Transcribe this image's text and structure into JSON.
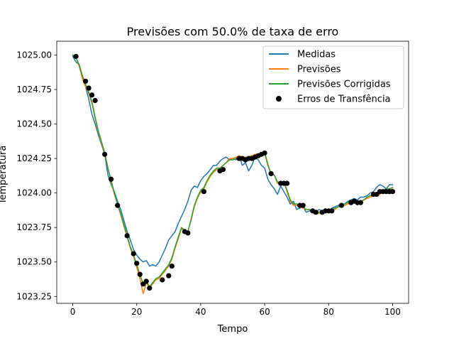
{
  "chart_data": {
    "type": "line",
    "title": "Previsões com 50.0% de taxa de erro",
    "xlabel": "Tempo",
    "ylabel": "Temperatura",
    "xlim": [
      -5,
      105
    ],
    "ylim": [
      1023.2,
      1025.1
    ],
    "x_ticks": [
      0,
      20,
      40,
      60,
      80,
      100
    ],
    "y_ticks": [
      1023.25,
      1023.5,
      1023.75,
      1024.0,
      1024.25,
      1024.5,
      1024.75,
      1025.0
    ],
    "x_tick_labels": [
      "0",
      "20",
      "40",
      "60",
      "80",
      "100"
    ],
    "y_tick_labels": [
      "1023.25",
      "1023.50",
      "1023.75",
      "1024.00",
      "1024.25",
      "1024.50",
      "1024.75",
      "1025.00"
    ],
    "grid": false,
    "legend_position": "top-right",
    "series": [
      {
        "name": "Medidas",
        "color": "#1f77b4",
        "style": "line",
        "x": [
          0,
          1,
          2,
          3,
          4,
          5,
          6,
          7,
          8,
          9,
          10,
          11,
          12,
          13,
          14,
          15,
          16,
          17,
          18,
          19,
          20,
          21,
          22,
          23,
          24,
          25,
          26,
          27,
          28,
          29,
          30,
          31,
          32,
          33,
          34,
          35,
          36,
          37,
          38,
          39,
          40,
          41,
          42,
          43,
          44,
          45,
          46,
          47,
          48,
          49,
          50,
          51,
          52,
          53,
          54,
          55,
          56,
          57,
          58,
          59,
          60,
          61,
          62,
          63,
          64,
          65,
          66,
          67,
          68,
          69,
          70,
          71,
          72,
          73,
          74,
          75,
          76,
          77,
          78,
          79,
          80,
          81,
          82,
          83,
          84,
          85,
          86,
          87,
          88,
          89,
          90,
          91,
          92,
          93,
          94,
          95,
          96,
          97,
          98,
          99,
          100
        ],
        "y": [
          1024.99,
          1024.95,
          1024.93,
          1024.85,
          1024.77,
          1024.68,
          1024.57,
          1024.5,
          1024.42,
          1024.35,
          1024.28,
          1024.13,
          1024.06,
          1024.01,
          1023.94,
          1023.88,
          1023.8,
          1023.72,
          1023.66,
          1023.59,
          1023.55,
          1023.52,
          1023.5,
          1023.51,
          1023.47,
          1023.48,
          1023.47,
          1023.5,
          1023.55,
          1023.6,
          1023.66,
          1023.69,
          1023.72,
          1023.78,
          1023.83,
          1023.88,
          1023.94,
          1024.02,
          1024.05,
          1024.04,
          1024.09,
          1024.12,
          1024.14,
          1024.17,
          1024.2,
          1024.2,
          1024.23,
          1024.25,
          1024.26,
          1024.24,
          1024.25,
          1024.24,
          1024.27,
          1024.2,
          1024.22,
          1024.16,
          1024.2,
          1024.26,
          1024.24,
          1024.2,
          1024.18,
          1024.1,
          1024.06,
          1024.03,
          1023.99,
          1024.05,
          1024.01,
          1023.97,
          1023.92,
          1023.94,
          1023.88,
          1023.89,
          1023.9,
          1023.86,
          1023.87,
          1023.88,
          1023.86,
          1023.88,
          1023.87,
          1023.88,
          1023.87,
          1023.89,
          1023.9,
          1023.91,
          1023.92,
          1023.92,
          1023.94,
          1023.95,
          1023.96,
          1023.95,
          1023.97,
          1023.97,
          1023.98,
          1024.0,
          1024.01,
          1024.04,
          1024.06,
          1024.05,
          1024.03,
          1024.06,
          1024.06
        ]
      },
      {
        "name": "Previsões",
        "color": "#ff7f0e",
        "style": "line",
        "x": [
          0,
          1,
          2,
          3,
          4,
          5,
          6,
          7,
          8,
          9,
          10,
          11,
          12,
          13,
          14,
          15,
          16,
          17,
          18,
          19,
          20,
          21,
          22,
          23,
          24,
          25,
          26,
          27,
          28,
          29,
          30,
          31,
          32,
          33,
          34,
          35,
          36,
          37,
          38,
          39,
          40,
          41,
          42,
          43,
          44,
          45,
          46,
          47,
          48,
          49,
          50,
          51,
          52,
          53,
          54,
          55,
          56,
          57,
          58,
          59,
          60,
          61,
          62,
          63,
          64,
          65,
          66,
          67,
          68,
          69,
          70,
          71,
          72,
          73,
          74,
          75,
          76,
          77,
          78,
          79,
          80,
          81,
          82,
          83,
          84,
          85,
          86,
          87,
          88,
          89,
          90,
          91,
          92,
          93,
          94,
          95,
          96,
          97,
          98,
          99,
          100
        ],
        "y": [
          1025.0,
          1024.98,
          1024.92,
          1024.83,
          1024.77,
          1024.72,
          1024.65,
          1024.54,
          1024.44,
          1024.36,
          1024.28,
          1024.18,
          1024.08,
          1023.99,
          1023.92,
          1023.84,
          1023.76,
          1023.68,
          1023.6,
          1023.54,
          1023.46,
          1023.38,
          1023.27,
          1023.35,
          1023.31,
          1023.34,
          1023.37,
          1023.38,
          1023.41,
          1023.44,
          1023.47,
          1023.52,
          1023.6,
          1023.67,
          1023.74,
          1023.73,
          1023.72,
          1023.8,
          1023.9,
          1023.96,
          1024.01,
          1024.03,
          1024.08,
          1024.12,
          1024.15,
          1024.17,
          1024.17,
          1024.2,
          1024.22,
          1024.25,
          1024.25,
          1024.26,
          1024.27,
          1024.26,
          1024.26,
          1024.26,
          1024.27,
          1024.28,
          1024.28,
          1024.29,
          1024.3,
          1024.21,
          1024.14,
          1024.13,
          1024.07,
          1024.07,
          1024.08,
          1024.01,
          1023.94,
          1023.91,
          1023.91,
          1023.9,
          1023.89,
          1023.88,
          1023.88,
          1023.87,
          1023.86,
          1023.85,
          1023.86,
          1023.87,
          1023.87,
          1023.87,
          1023.88,
          1023.9,
          1023.9,
          1023.91,
          1023.92,
          1023.93,
          1023.94,
          1023.94,
          1023.93,
          1023.95,
          1023.96,
          1023.97,
          1023.98,
          1024.0,
          1023.99,
          1024.01,
          1024.02,
          1024.02,
          1024.03
        ]
      },
      {
        "name": "Previsões Corrigidas",
        "color": "#2ca02c",
        "style": "line",
        "x": [
          0,
          1,
          2,
          3,
          4,
          5,
          6,
          7,
          8,
          9,
          10,
          11,
          12,
          13,
          14,
          15,
          16,
          17,
          18,
          19,
          20,
          21,
          22,
          23,
          24,
          25,
          26,
          27,
          28,
          29,
          30,
          31,
          32,
          33,
          34,
          35,
          36,
          37,
          38,
          39,
          40,
          41,
          42,
          43,
          44,
          45,
          46,
          47,
          48,
          49,
          50,
          51,
          52,
          53,
          54,
          55,
          56,
          57,
          58,
          59,
          60,
          61,
          62,
          63,
          64,
          65,
          66,
          67,
          68,
          69,
          70,
          71,
          72,
          73,
          74,
          75,
          76,
          77,
          78,
          79,
          80,
          81,
          82,
          83,
          84,
          85,
          86,
          87,
          88,
          89,
          90,
          91,
          92,
          93,
          94,
          95,
          96,
          97,
          98,
          99,
          100
        ],
        "y": [
          1025.0,
          1024.98,
          1024.93,
          1024.85,
          1024.79,
          1024.73,
          1024.66,
          1024.55,
          1024.45,
          1024.37,
          1024.29,
          1024.18,
          1024.09,
          1024.0,
          1023.92,
          1023.85,
          1023.77,
          1023.69,
          1023.61,
          1023.55,
          1023.48,
          1023.41,
          1023.34,
          1023.36,
          1023.32,
          1023.35,
          1023.38,
          1023.39,
          1023.42,
          1023.45,
          1023.48,
          1023.53,
          1023.61,
          1023.68,
          1023.75,
          1023.73,
          1023.72,
          1023.81,
          1023.91,
          1023.97,
          1024.02,
          1024.04,
          1024.09,
          1024.13,
          1024.16,
          1024.18,
          1024.18,
          1024.2,
          1024.22,
          1024.24,
          1024.24,
          1024.25,
          1024.26,
          1024.25,
          1024.25,
          1024.25,
          1024.26,
          1024.27,
          1024.27,
          1024.28,
          1024.29,
          1024.2,
          1024.14,
          1024.13,
          1024.08,
          1024.08,
          1024.08,
          1024.02,
          1023.95,
          1023.92,
          1023.92,
          1023.91,
          1023.9,
          1023.88,
          1023.88,
          1023.87,
          1023.87,
          1023.86,
          1023.87,
          1023.88,
          1023.88,
          1023.88,
          1023.89,
          1023.9,
          1023.91,
          1023.92,
          1023.93,
          1023.94,
          1023.94,
          1023.94,
          1023.94,
          1023.95,
          1023.97,
          1023.98,
          1023.99,
          1024.0,
          1024.0,
          1024.02,
          1024.03,
          1024.03,
          1024.04
        ]
      },
      {
        "name": "Erros de Transfência",
        "color": "#000000",
        "style": "scatter",
        "x": [
          1,
          4,
          5,
          6,
          7,
          10,
          12,
          14,
          17,
          19,
          20,
          21,
          22,
          23,
          24,
          28,
          30,
          31,
          35,
          36,
          41,
          46,
          47,
          52,
          53,
          54,
          55,
          56,
          57,
          58,
          59,
          60,
          62,
          65,
          66,
          67,
          71,
          72,
          75,
          76,
          78,
          79,
          80,
          81,
          84,
          87,
          88,
          89,
          90,
          94,
          95,
          96,
          97,
          98,
          99,
          100
        ],
        "y": [
          1024.99,
          1024.81,
          1024.76,
          1024.71,
          1024.67,
          1024.28,
          1024.1,
          1023.91,
          1023.69,
          1023.56,
          1023.49,
          1023.41,
          1023.34,
          1023.36,
          1023.31,
          1023.37,
          1023.4,
          1023.47,
          1023.72,
          1023.71,
          1024.01,
          1024.16,
          1024.17,
          1024.25,
          1024.25,
          1024.24,
          1024.25,
          1024.25,
          1024.26,
          1024.27,
          1024.28,
          1024.29,
          1024.14,
          1024.07,
          1024.07,
          1024.07,
          1023.91,
          1023.91,
          1023.87,
          1023.86,
          1023.86,
          1023.87,
          1023.87,
          1023.87,
          1023.91,
          1023.93,
          1023.94,
          1023.93,
          1023.93,
          1023.99,
          1023.99,
          1024.01,
          1024.01,
          1024.01,
          1024.01,
          1024.01
        ]
      }
    ]
  }
}
